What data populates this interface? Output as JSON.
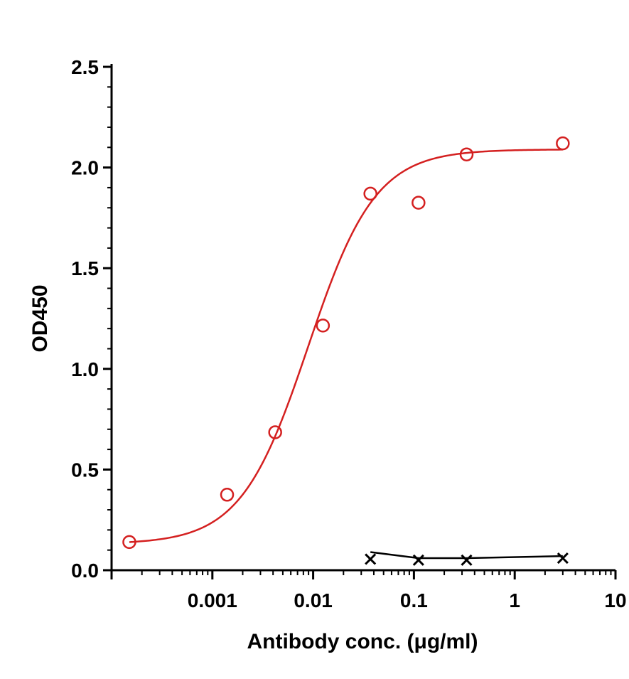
{
  "chart_data": {
    "type": "scatter",
    "xlabel": "Antibody conc. (μg/ml)",
    "ylabel": "OD450",
    "x_scale": "log",
    "xlim": [
      0.0001,
      10
    ],
    "ylim": [
      0,
      2.5
    ],
    "x_tick_labels": [
      "0.001",
      "0.01",
      "0.1",
      "1",
      "10"
    ],
    "x_ticks": [
      0.001,
      0.01,
      0.1,
      1,
      10
    ],
    "y_tick_labels": [
      "0.0",
      "0.5",
      "1.0",
      "1.5",
      "2.0",
      "2.5"
    ],
    "y_ticks": [
      0,
      0.5,
      1.0,
      1.5,
      2.0,
      2.5
    ],
    "grid": false,
    "series": [
      {
        "marker": "open-circle",
        "color": "#d42020",
        "fit": "sigmoidal",
        "x": [
          0.00015,
          0.0014,
          0.0042,
          0.0125,
          0.037,
          0.111,
          0.333,
          3.0
        ],
        "y": [
          0.14,
          0.375,
          0.685,
          1.215,
          1.87,
          1.825,
          2.065,
          2.12
        ]
      },
      {
        "marker": "x",
        "color": "#000000",
        "fit": "line",
        "x": [
          0.037,
          0.111,
          0.333,
          3.0
        ],
        "y": [
          0.055,
          0.05,
          0.05,
          0.06
        ]
      }
    ],
    "fit_curve": {
      "bottom": 0.13,
      "top": 2.09,
      "log_ec50": -2.05,
      "hill": 1.3
    }
  }
}
